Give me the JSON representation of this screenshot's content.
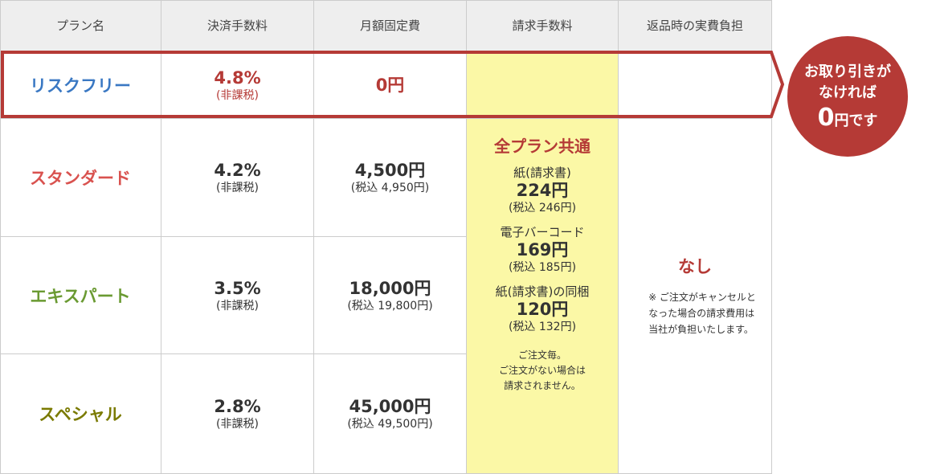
{
  "headers": [
    "プラン名",
    "決済手数料",
    "月額固定費",
    "請求手数料",
    "返品時の実費負担"
  ],
  "plans": [
    {
      "name": "リスクフリー",
      "name_color": "#3a78c3",
      "rate": "4.8%",
      "rate_note": "(非課税)",
      "fee": "0円",
      "fee_tax": ""
    },
    {
      "name": "スタンダード",
      "name_color": "#d9524f",
      "rate": "4.2%",
      "rate_note": "(非課税)",
      "fee": "4,500円",
      "fee_tax": "(税込 4,950円)"
    },
    {
      "name": "エキスパート",
      "name_color": "#6a9a32",
      "rate": "3.5%",
      "rate_note": "(非課税)",
      "fee": "18,000円",
      "fee_tax": "(税込 19,800円)"
    },
    {
      "name": "スペシャル",
      "name_color": "#7a7a00",
      "rate": "2.8%",
      "rate_note": "(非課税)",
      "fee": "45,000円",
      "fee_tax": "(税込 49,500円)"
    }
  ],
  "billing": {
    "title": "全プラン共通",
    "items": [
      {
        "label": "紙(請求書)",
        "price": "224円",
        "tax": "(税込 246円)"
      },
      {
        "label": "電子バーコード",
        "price": "169円",
        "tax": "(税込 185円)"
      },
      {
        "label": "紙(請求書)の同梱",
        "price": "120円",
        "tax": "(税込 132円)"
      }
    ],
    "note_lines": [
      "ご注文毎。",
      "ご注文がない場合は",
      "請求されません。"
    ]
  },
  "returns": {
    "value": "なし",
    "note_lines": [
      "※ ご注文がキャンセルと",
      "なった場合の請求費用は",
      "当社が負担いたします。"
    ]
  },
  "badge": {
    "line1": "お取り引きが",
    "line2": "なければ",
    "zero": "0",
    "suffix": "円です"
  },
  "colors": {
    "accent": "#b53a36",
    "highlight": "#fbf8a6",
    "header_bg": "#eeeeee"
  }
}
